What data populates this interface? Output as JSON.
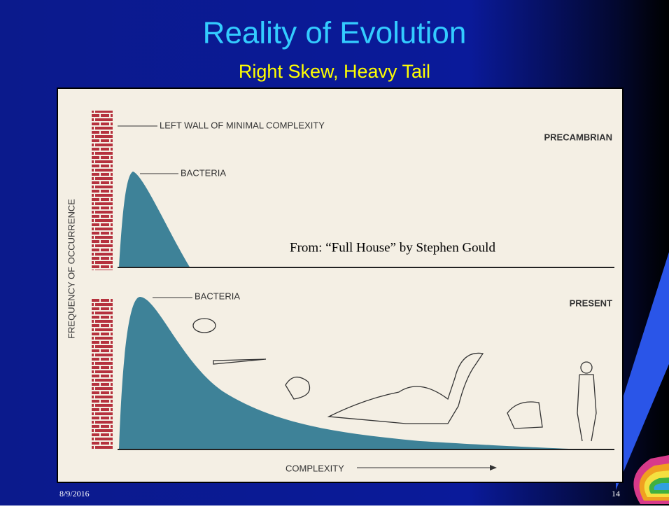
{
  "slide": {
    "title": "Reality of Evolution",
    "subtitle": "Right Skew, Heavy Tail",
    "figure": {
      "y_axis_label": "FREQUENCY OF OCCURRENCE",
      "precambrian": {
        "wall_label": "LEFT WALL OF MINIMAL COMPLEXITY",
        "panel_label": "PRECAMBRIAN",
        "peak_label": "BACTERIA"
      },
      "present": {
        "panel_label": "PRESENT",
        "peak_label": "BACTERIA"
      },
      "x_axis_label": "COMPLEXITY",
      "source": "From: “Full House” by Stephen Gould"
    },
    "footer": {
      "date": "8/9/2016",
      "page": "14"
    }
  }
}
